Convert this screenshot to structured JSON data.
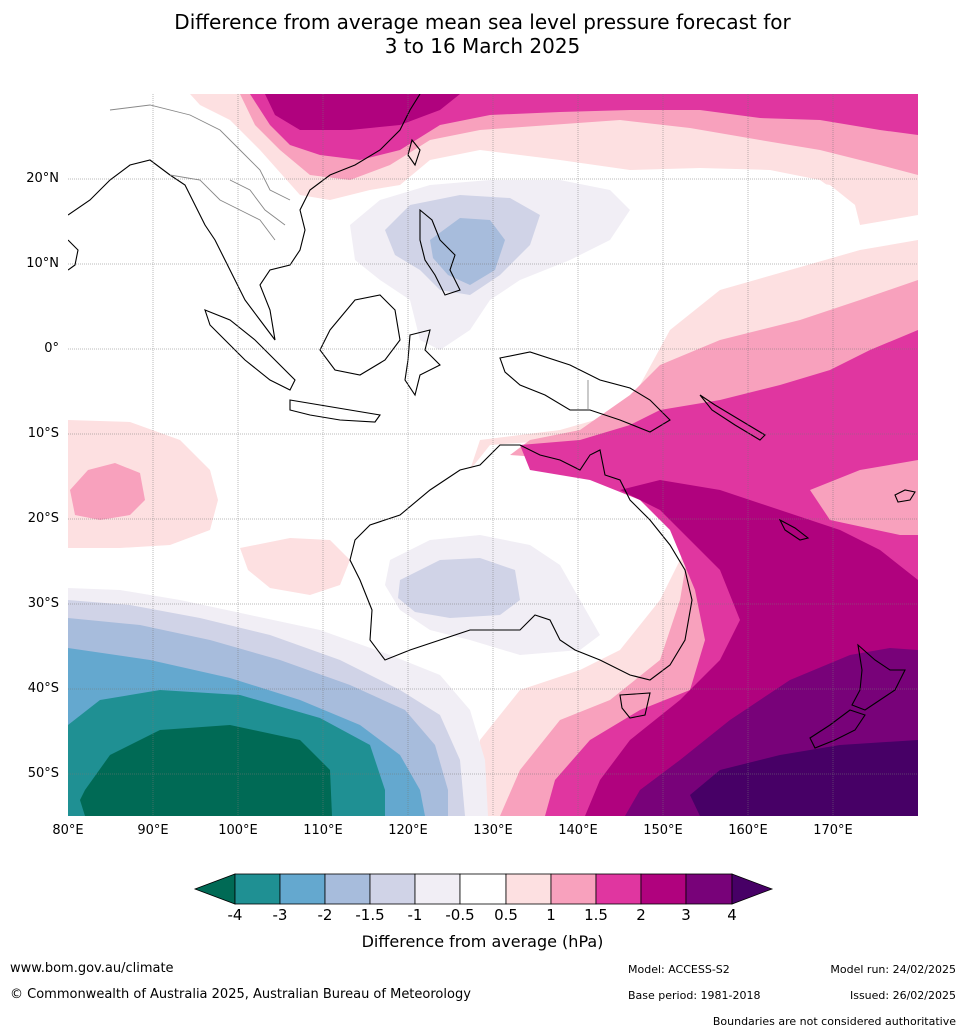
{
  "title_line1": "Difference from average mean sea level pressure forecast for",
  "title_line2": "3 to 16 March 2025",
  "lat_labels": [
    "20°N",
    "10°N",
    "0°",
    "10°S",
    "20°S",
    "30°S",
    "40°S",
    "50°S"
  ],
  "lon_labels": [
    "80°E",
    "90°E",
    "100°E",
    "110°E",
    "120°E",
    "130°E",
    "140°E",
    "150°E",
    "160°E",
    "170°E"
  ],
  "colorbar": {
    "title": "Difference from average (hPa)",
    "ticks": [
      "-4",
      "-3",
      "-2",
      "-1.5",
      "-1",
      "-0.5",
      "0.5",
      "1",
      "1.5",
      "2",
      "3",
      "4"
    ],
    "colors": {
      "below_-4": "#006a55",
      "-4_-3": "#1f9093",
      "-3_-2": "#64a8cf",
      "-2_-1.5": "#a7bcdc",
      "-1.5_-1": "#d0d3e7",
      "-1_-0.5": "#f1eef5",
      "-0.5_0.5": "#ffffff",
      "0.5_1": "#fde0e1",
      "1_1.5": "#f8a1bd",
      "1.5_2": "#e036a0",
      "2_3": "#b0027e",
      "3_4": "#780279",
      "above_4": "#470066"
    }
  },
  "footer": {
    "website": "www.bom.gov.au/climate",
    "copyright": "© Commonwealth of Australia 2025, Australian Bureau of Meteorology",
    "model": "Model: ACCESS-S2",
    "base_period": "Base period: 1981-2018",
    "model_run": "Model run: 24/02/2025",
    "issued": "Issued: 26/02/2025",
    "disclaimer": "Boundaries are not considered authoritative"
  }
}
